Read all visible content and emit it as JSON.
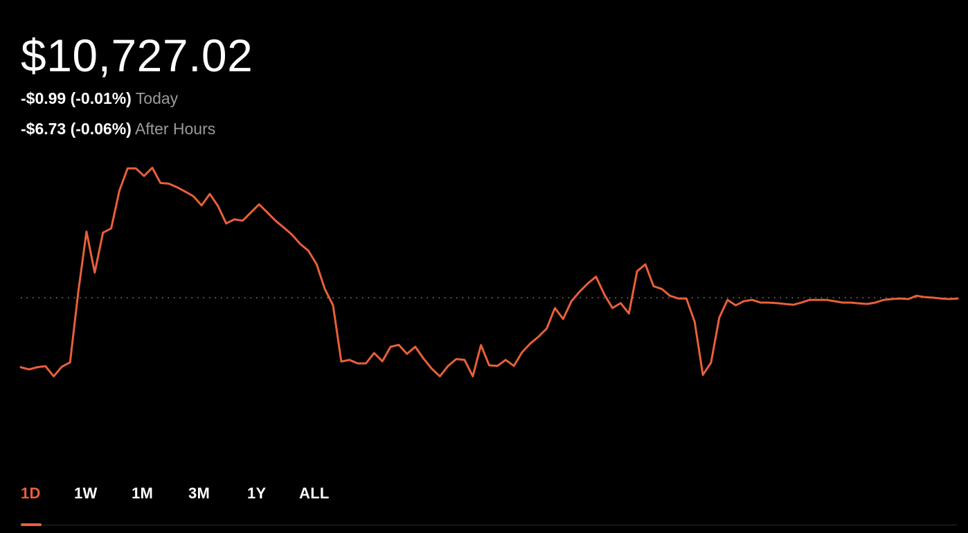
{
  "portfolio": {
    "value": "$10,727.02",
    "today_change": "-$0.99 (-0.01%)",
    "today_label": "Today",
    "after_hours_change": "-$6.73 (-0.06%)",
    "after_hours_label": "After Hours"
  },
  "range_tabs": [
    {
      "label": "1D",
      "active": true
    },
    {
      "label": "1W",
      "active": false
    },
    {
      "label": "1M",
      "active": false
    },
    {
      "label": "3M",
      "active": false
    },
    {
      "label": "1Y",
      "active": false
    },
    {
      "label": "ALL",
      "active": false
    }
  ],
  "colors": {
    "accent": "#e8603a",
    "background": "#000000",
    "text": "#ffffff",
    "muted_text": "#9b9b9b",
    "baseline_dots": "#8a8a8a"
  },
  "chart_data": {
    "type": "line",
    "baseline": 10733.75,
    "ylim": [
      10678,
      10782
    ],
    "grid": false,
    "series": [
      {
        "values": [
          10708.3,
          10707.5,
          10708.3,
          10708.7,
          10705.0,
          10708.5,
          10710.1,
          10736.0,
          10758.0,
          10743.0,
          10757.6,
          10759.2,
          10773.0,
          10781.2,
          10781.2,
          10778.4,
          10781.4,
          10775.8,
          10775.6,
          10774.3,
          10772.7,
          10771.0,
          10767.6,
          10771.8,
          10767.4,
          10761.0,
          10762.5,
          10762.0,
          10765.0,
          10768.0,
          10765.0,
          10762.0,
          10759.5,
          10756.9,
          10753.5,
          10751.0,
          10746.0,
          10737.0,
          10731.0,
          10710.4,
          10711.0,
          10709.7,
          10709.7,
          10713.5,
          10710.5,
          10715.8,
          10716.5,
          10713.2,
          10715.8,
          10711.5,
          10707.8,
          10705.0,
          10708.8,
          10711.3,
          10711.0,
          10705.0,
          10716.4,
          10709.0,
          10708.8,
          10711.0,
          10708.8,
          10713.8,
          10717.0,
          10719.5,
          10722.5,
          10730.0,
          10726.0,
          10732.5,
          10736.0,
          10739.0,
          10741.5,
          10735.0,
          10730.0,
          10731.8,
          10728.0,
          10743.5,
          10746.0,
          10738.0,
          10737.0,
          10734.5,
          10733.5,
          10733.5,
          10725.0,
          10705.5,
          10710.0,
          10726.5,
          10733.0,
          10731.0,
          10732.5,
          10733.0,
          10732.0,
          10732.0,
          10731.8,
          10731.5,
          10731.2,
          10732.0,
          10733.0,
          10733.0,
          10733.0,
          10732.5,
          10732.0,
          10732.0,
          10731.7,
          10731.5,
          10732.0,
          10733.0,
          10733.3,
          10733.5,
          10733.3,
          10734.5,
          10734.0,
          10733.8,
          10733.5,
          10733.3,
          10733.5
        ]
      }
    ]
  }
}
